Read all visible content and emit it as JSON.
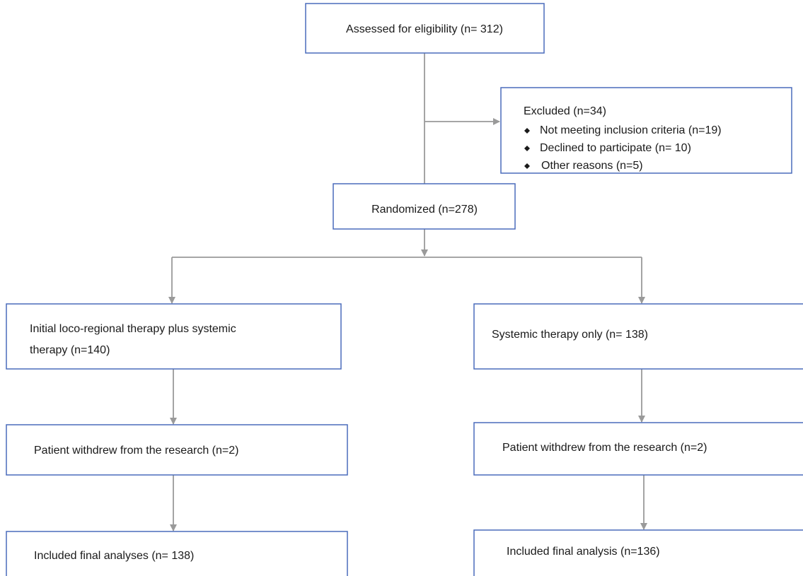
{
  "nodes": [
    {
      "label": "Assessed for eligibility (n= 312)"
    },
    {
      "label": "Excluded (n=34)",
      "items": [
        "Not meeting inclusion criteria (n=19)",
        "Declined to participate (n= 10)",
        "Other reasons (n=5)"
      ]
    },
    {
      "label": "Randomized (n=278)"
    },
    {
      "label": [
        "Initial loco-regional therapy plus systemic",
        "therapy (n=140)"
      ]
    },
    {
      "label": "Systemic therapy only (n= 138)"
    },
    {
      "label": "Patient withdrew from the research (n=2)"
    },
    {
      "label": "Patient withdrew from the research (n=2)"
    },
    {
      "label": "Included final analyses (n= 138)"
    },
    {
      "label": "Included final analysis (n=136)"
    }
  ]
}
